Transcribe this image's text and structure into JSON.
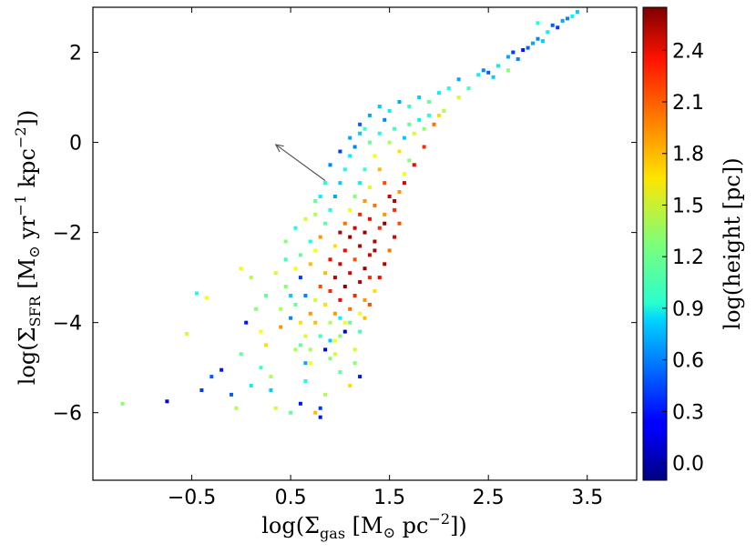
{
  "chart_data": {
    "type": "scatter",
    "title": "",
    "xlabel": {
      "main": "log(Σ",
      "sub": "gas",
      "unit": " [M",
      "sun": "⊙",
      "unit2": " pc",
      "sup": "−2",
      "close": "])"
    },
    "ylabel": {
      "main": "log(Σ",
      "sub": "SFR",
      "unit": " [M",
      "sun": "⊙",
      "unit2": " yr",
      "sup1": "−1",
      "unit3": "  kpc",
      "sup2": "−2",
      "close": "])"
    },
    "colorbar_label": "log(height [pc])",
    "xlim": [
      -1.5,
      4.0
    ],
    "ylim": [
      -7.5,
      3.0
    ],
    "clim": [
      -0.1,
      2.65
    ],
    "x_ticks": [
      "−0.5",
      "0.5",
      "1.5",
      "2.5",
      "3.5"
    ],
    "x_tick_values": [
      -0.5,
      0.5,
      1.5,
      2.5,
      3.5
    ],
    "y_ticks": [
      "2",
      "0",
      "−2",
      "−4",
      "−6"
    ],
    "y_tick_values": [
      2,
      0,
      -2,
      -4,
      -6
    ],
    "colorbar_ticks": [
      "2.4",
      "2.1",
      "1.8",
      "1.5",
      "1.2",
      "0.9",
      "0.6",
      "0.3",
      "0.0"
    ],
    "colorbar_tick_values": [
      2.4,
      2.1,
      1.8,
      1.5,
      1.2,
      0.9,
      0.6,
      0.3,
      0.0
    ],
    "colormap": "jet",
    "annotation_arrow": {
      "from": [
        0.85,
        -0.85
      ],
      "to": [
        0.35,
        -0.05
      ],
      "color": "#555555"
    },
    "points": [
      [
        -1.2,
        -5.8,
        1.3
      ],
      [
        -0.75,
        -5.75,
        0.2
      ],
      [
        -0.55,
        -4.25,
        1.5
      ],
      [
        -0.45,
        -3.35,
        1.0
      ],
      [
        -0.35,
        -3.45,
        1.6
      ],
      [
        -0.4,
        -5.5,
        0.4
      ],
      [
        -0.3,
        -5.2,
        0.5
      ],
      [
        -0.2,
        -5.05,
        0.3
      ],
      [
        -0.1,
        -5.6,
        0.5
      ],
      [
        0.0,
        -4.7,
        1.2
      ],
      [
        -0.05,
        -5.9,
        1.4
      ],
      [
        0.1,
        -5.4,
        0.9
      ],
      [
        0.2,
        -5.0,
        1.1
      ],
      [
        0.1,
        -3.0,
        1.4
      ],
      [
        0.0,
        -2.8,
        1.6
      ],
      [
        0.15,
        -3.7,
        1.3
      ],
      [
        0.25,
        -4.5,
        1.7
      ],
      [
        0.3,
        -5.5,
        0.8
      ],
      [
        0.35,
        -5.9,
        1.5
      ],
      [
        0.4,
        -4.1,
        1.9
      ],
      [
        0.45,
        -3.2,
        1.3
      ],
      [
        0.5,
        -3.9,
        0.6
      ],
      [
        0.55,
        -4.6,
        1.4
      ],
      [
        0.6,
        -5.8,
        0.3
      ],
      [
        0.65,
        -5.3,
        1.0
      ],
      [
        0.7,
        -4.9,
        1.6
      ],
      [
        0.75,
        -6.0,
        1.8
      ],
      [
        0.8,
        -6.1,
        0.3
      ],
      [
        0.85,
        -5.6,
        1.4
      ],
      [
        0.9,
        -4.4,
        0.8
      ],
      [
        0.95,
        -4.7,
        1.5
      ],
      [
        1.0,
        -5.1,
        1.2
      ],
      [
        1.05,
        -4.2,
        0.2
      ],
      [
        1.1,
        -5.4,
        1.7
      ],
      [
        1.15,
        -4.9,
        1.3
      ],
      [
        0.6,
        -2.5,
        1.2
      ],
      [
        0.7,
        -2.2,
        1.0
      ],
      [
        0.75,
        -1.6,
        1.4
      ],
      [
        0.8,
        -1.2,
        0.9
      ],
      [
        0.6,
        -3.0,
        0.4
      ],
      [
        0.55,
        -2.8,
        1.6
      ],
      [
        0.45,
        -2.6,
        1.1
      ],
      [
        0.65,
        -3.4,
        0.6
      ],
      [
        0.7,
        -3.8,
        1.9
      ],
      [
        0.75,
        -3.5,
        1.5
      ],
      [
        0.8,
        -3.2,
        2.1
      ],
      [
        0.85,
        -2.9,
        1.8
      ],
      [
        0.9,
        -2.6,
        2.3
      ],
      [
        0.95,
        -2.3,
        1.7
      ],
      [
        1.0,
        -2.0,
        2.5
      ],
      [
        1.05,
        -1.8,
        2.0
      ],
      [
        1.1,
        -1.5,
        1.6
      ],
      [
        1.15,
        -1.2,
        1.3
      ],
      [
        1.2,
        -0.9,
        0.9
      ],
      [
        1.25,
        -0.6,
        1.1
      ],
      [
        0.85,
        -3.6,
        1.7
      ],
      [
        0.9,
        -3.3,
        2.2
      ],
      [
        0.95,
        -3.0,
        2.5
      ],
      [
        1.0,
        -2.7,
        2.4
      ],
      [
        1.05,
        -2.4,
        2.3
      ],
      [
        1.1,
        -2.1,
        2.6
      ],
      [
        1.15,
        -1.9,
        2.4
      ],
      [
        1.2,
        -1.6,
        2.2
      ],
      [
        1.25,
        -1.3,
        1.9
      ],
      [
        1.3,
        -1.0,
        1.5
      ],
      [
        0.9,
        -4.0,
        1.4
      ],
      [
        0.95,
        -3.8,
        1.9
      ],
      [
        1.0,
        -3.5,
        2.3
      ],
      [
        1.05,
        -3.2,
        2.6
      ],
      [
        1.1,
        -2.9,
        2.4
      ],
      [
        1.15,
        -2.6,
        2.1
      ],
      [
        1.2,
        -2.3,
        2.5
      ],
      [
        1.25,
        -2.0,
        2.6
      ],
      [
        1.3,
        -1.7,
        2.3
      ],
      [
        1.35,
        -1.4,
        2.0
      ],
      [
        1.0,
        -4.3,
        1.3
      ],
      [
        1.05,
        -4.0,
        1.6
      ],
      [
        1.1,
        -3.7,
        2.0
      ],
      [
        1.15,
        -3.4,
        2.2
      ],
      [
        1.2,
        -3.1,
        2.5
      ],
      [
        1.25,
        -2.8,
        2.6
      ],
      [
        1.3,
        -2.5,
        2.4
      ],
      [
        1.35,
        -2.2,
        2.5
      ],
      [
        1.4,
        -1.9,
        2.2
      ],
      [
        1.45,
        -1.6,
        1.9
      ],
      [
        1.15,
        -4.6,
        1.5
      ],
      [
        1.2,
        -4.2,
        1.1
      ],
      [
        1.25,
        -3.9,
        1.8
      ],
      [
        1.3,
        -3.6,
        2.1
      ],
      [
        1.35,
        -3.3,
        1.7
      ],
      [
        1.4,
        -3.0,
        2.3
      ],
      [
        1.45,
        -2.7,
        2.5
      ],
      [
        1.5,
        -2.4,
        2.0
      ],
      [
        1.55,
        -2.1,
        2.4
      ],
      [
        1.6,
        -1.8,
        2.1
      ],
      [
        0.55,
        -3.6,
        1.2
      ],
      [
        0.6,
        -4.0,
        1.7
      ],
      [
        0.65,
        -4.3,
        1.5
      ],
      [
        0.5,
        -3.4,
        0.8
      ],
      [
        0.4,
        -3.7,
        1.4
      ],
      [
        0.7,
        -2.7,
        1.8
      ],
      [
        0.75,
        -2.4,
        1.6
      ],
      [
        0.8,
        -2.1,
        1.9
      ],
      [
        0.85,
        -1.8,
        1.2
      ],
      [
        0.9,
        -1.5,
        1.0
      ],
      [
        0.95,
        -1.2,
        0.7
      ],
      [
        1.0,
        -0.9,
        0.8
      ],
      [
        1.05,
        -0.6,
        1.0
      ],
      [
        1.1,
        -0.3,
        0.9
      ],
      [
        1.15,
        -0.1,
        0.6
      ],
      [
        1.2,
        0.2,
        0.8
      ],
      [
        1.3,
        0.0,
        1.2
      ],
      [
        1.35,
        -0.3,
        1.6
      ],
      [
        1.4,
        -0.6,
        1.8
      ],
      [
        1.45,
        -0.9,
        2.1
      ],
      [
        1.5,
        -1.2,
        2.4
      ],
      [
        1.55,
        -1.5,
        2.2
      ],
      [
        1.6,
        -1.1,
        1.9
      ],
      [
        1.65,
        -0.7,
        1.6
      ],
      [
        1.7,
        -0.4,
        1.3
      ],
      [
        1.4,
        0.2,
        1.0
      ],
      [
        1.5,
        0.0,
        1.4
      ],
      [
        1.55,
        0.3,
        1.1
      ],
      [
        1.6,
        -0.2,
        1.7
      ],
      [
        1.65,
        0.1,
        0.8
      ],
      [
        1.7,
        0.4,
        1.2
      ],
      [
        1.75,
        0.2,
        1.5
      ],
      [
        1.8,
        0.5,
        0.9
      ],
      [
        1.85,
        0.3,
        1.3
      ],
      [
        1.9,
        0.6,
        1.0
      ],
      [
        1.45,
        0.5,
        0.6
      ],
      [
        1.5,
        0.7,
        0.9
      ],
      [
        1.6,
        0.9,
        0.7
      ],
      [
        1.7,
        0.8,
        1.1
      ],
      [
        1.8,
        1.0,
        0.8
      ],
      [
        1.9,
        0.9,
        1.2
      ],
      [
        2.0,
        1.1,
        0.9
      ],
      [
        2.05,
        0.7,
        1.4
      ],
      [
        2.1,
        1.2,
        1.0
      ],
      [
        2.2,
        1.4,
        0.7
      ],
      [
        2.3,
        1.2,
        1.1
      ],
      [
        2.4,
        1.5,
        0.9
      ],
      [
        2.45,
        1.6,
        0.6
      ],
      [
        2.5,
        1.55,
        0.5
      ],
      [
        2.55,
        1.45,
        0.8
      ],
      [
        2.6,
        1.7,
        0.9
      ],
      [
        2.7,
        1.9,
        0.7
      ],
      [
        2.75,
        2.0,
        0.4
      ],
      [
        2.8,
        1.85,
        0.6
      ],
      [
        2.85,
        2.05,
        0.3
      ],
      [
        2.9,
        2.1,
        0.5
      ],
      [
        2.95,
        2.2,
        0.7
      ],
      [
        3.0,
        2.3,
        0.6
      ],
      [
        3.05,
        2.25,
        0.8
      ],
      [
        3.1,
        2.45,
        0.9
      ],
      [
        3.15,
        2.6,
        0.5
      ],
      [
        3.2,
        2.55,
        0.4
      ],
      [
        3.25,
        2.7,
        0.7
      ],
      [
        3.3,
        2.75,
        0.6
      ],
      [
        3.35,
        2.8,
        0.9
      ],
      [
        3.4,
        2.9,
        0.8
      ],
      [
        3.0,
        2.65,
        1.0
      ],
      [
        2.7,
        1.6,
        1.3
      ],
      [
        2.2,
        1.0,
        1.5
      ],
      [
        2.0,
        0.6,
        1.7
      ],
      [
        1.95,
        0.4,
        2.0
      ],
      [
        1.85,
        -0.1,
        2.2
      ],
      [
        1.75,
        -0.5,
        2.3
      ],
      [
        1.65,
        -0.9,
        2.4
      ],
      [
        1.55,
        -1.3,
        2.5
      ],
      [
        1.45,
        -1.8,
        2.6
      ],
      [
        1.35,
        -2.4,
        2.5
      ],
      [
        1.3,
        -3.0,
        2.2
      ],
      [
        1.25,
        -3.5,
        1.9
      ],
      [
        1.2,
        -3.8,
        1.6
      ],
      [
        1.1,
        -4.0,
        1.2
      ],
      [
        1.0,
        -3.9,
        0.9
      ],
      [
        0.95,
        -4.4,
        1.6
      ],
      [
        0.9,
        -4.8,
        1.3
      ],
      [
        0.85,
        -4.6,
        0.2
      ],
      [
        0.8,
        -4.3,
        1.1
      ],
      [
        0.75,
        -4.0,
        1.8
      ],
      [
        0.7,
        -4.6,
        1.4
      ],
      [
        0.65,
        -4.9,
        0.7
      ],
      [
        0.6,
        -4.5,
        1.2
      ],
      [
        1.2,
        -5.2,
        0.3
      ],
      [
        0.8,
        -5.9,
        0.4
      ],
      [
        0.5,
        -6.0,
        1.2
      ],
      [
        0.3,
        -5.2,
        1.4
      ],
      [
        0.2,
        -4.2,
        1.6
      ],
      [
        0.05,
        -4.0,
        0.3
      ],
      [
        0.25,
        -3.4,
        1.2
      ],
      [
        0.35,
        -2.9,
        1.5
      ],
      [
        0.45,
        -2.2,
        1.3
      ],
      [
        0.55,
        -1.9,
        1.0
      ],
      [
        0.65,
        -1.7,
        1.5
      ],
      [
        0.75,
        -1.3,
        1.2
      ],
      [
        0.85,
        -0.9,
        1.0
      ],
      [
        0.9,
        -0.5,
        0.6
      ],
      [
        1.0,
        -0.2,
        0.4
      ],
      [
        1.1,
        0.1,
        0.7
      ],
      [
        1.2,
        0.4,
        0.5
      ],
      [
        1.3,
        0.6,
        0.7
      ],
      [
        1.4,
        0.8,
        0.8
      ],
      [
        1.25,
        0.3,
        1.1
      ]
    ]
  }
}
